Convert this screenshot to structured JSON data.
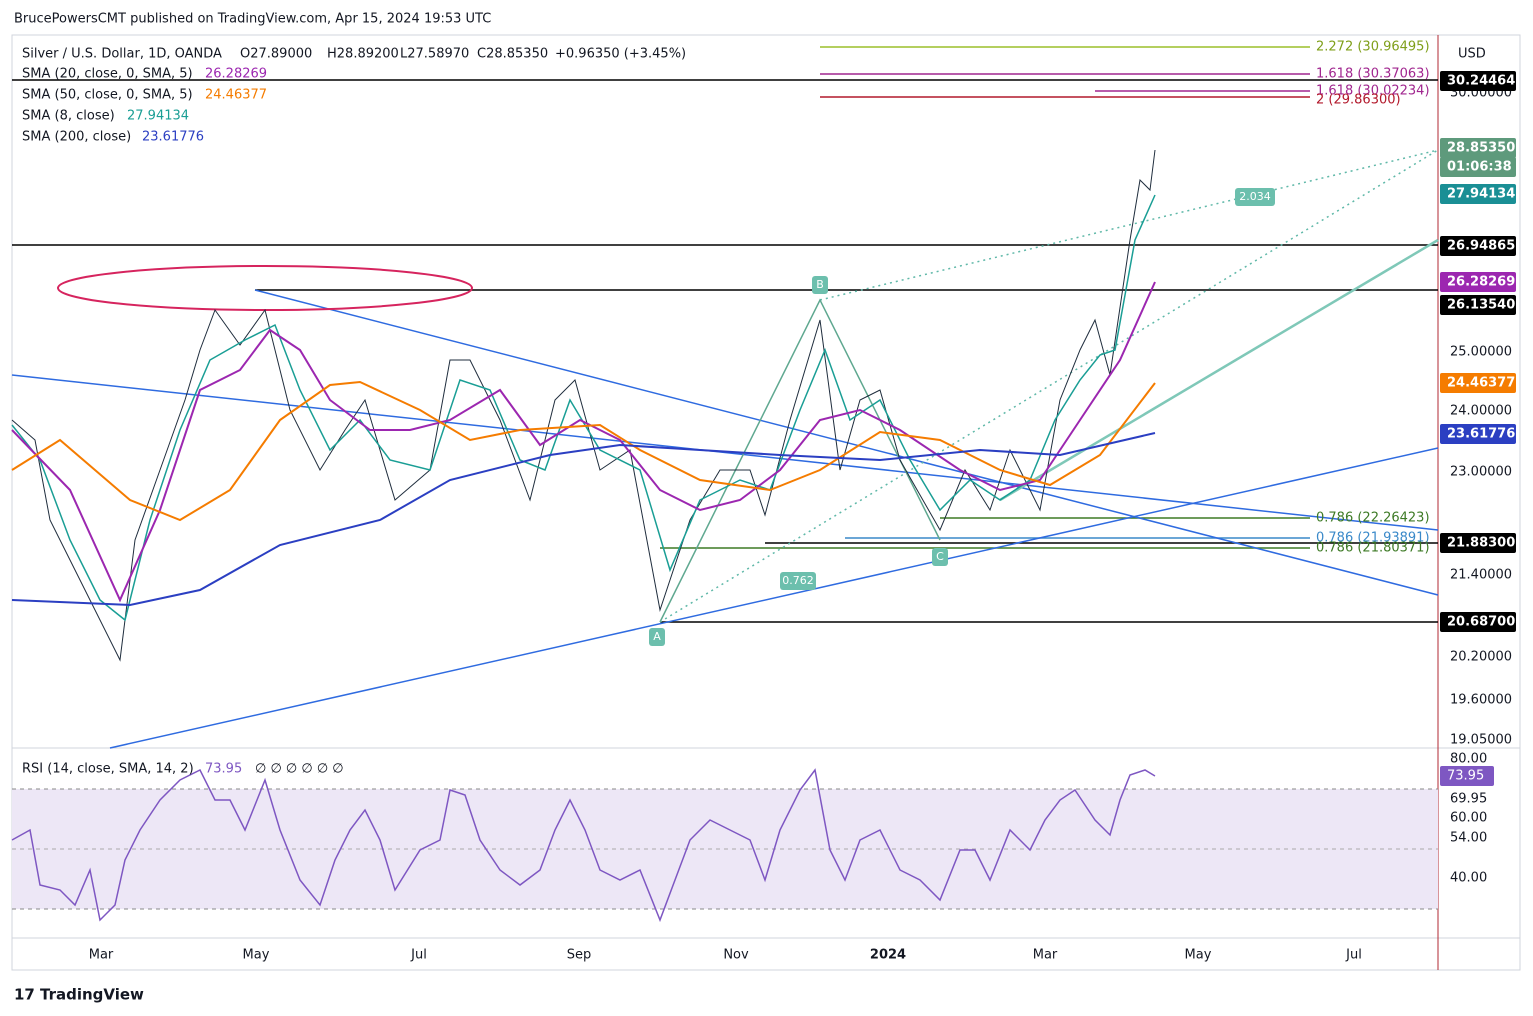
{
  "header": {
    "author": "BrucePowersCMT published on TradingView.com, Apr 15, 2024 19:53 UTC"
  },
  "legend": {
    "symbol": "Silver / U.S. Dollar, 1D, OANDA",
    "open": "O27.89000",
    "high": "H28.89200",
    "low": "L27.58970",
    "close": "C28.85350",
    "change": "+0.96350 (+3.45%)",
    "indicators": [
      {
        "label": "SMA (20, close, 0, SMA, 5)",
        "value": "26.28269"
      },
      {
        "label": "SMA (50, close, 0, SMA, 5)",
        "value": "24.46377"
      },
      {
        "label": "SMA (8, close)",
        "value": "27.94134"
      },
      {
        "label": "SMA (200, close)",
        "value": "23.61776"
      }
    ]
  },
  "price_axis": {
    "currency": "USD",
    "ticks": [
      "30.00000",
      "25.00000",
      "24.00000",
      "23.00000",
      "21.40000",
      "20.20000",
      "19.60000",
      "19.05000"
    ],
    "tags": [
      "30.24464",
      "28.85350",
      "01:06:38",
      "27.94134",
      "26.94865",
      "26.28269",
      "26.13540",
      "24.46377",
      "23.61776",
      "21.88300",
      "20.68700"
    ]
  },
  "fib_labels": [
    "2.272 (30.96495)",
    "1.618 (30.37063)",
    "1.618 (30.02234)",
    "2 (29.86300)",
    "0.786 (22.26423)",
    "0.786 (21.93891)",
    "0.786 (21.80371)"
  ],
  "pattern_labels": [
    "A",
    "B",
    "C",
    "0.762",
    "2.034"
  ],
  "rsi": {
    "label": "RSI (14, close, SMA, 14, 2)",
    "value": "73.95",
    "extra": "∅ ∅ ∅ ∅ ∅ ∅",
    "ticks": [
      "80.00",
      "69.95",
      "60.00",
      "54.00",
      "40.00"
    ],
    "tag": "73.95"
  },
  "time_axis": [
    "Mar",
    "May",
    "Jul",
    "Sep",
    "Nov",
    "2024",
    "Mar",
    "May",
    "Jul"
  ],
  "footer": {
    "brand": "TradingView"
  }
}
